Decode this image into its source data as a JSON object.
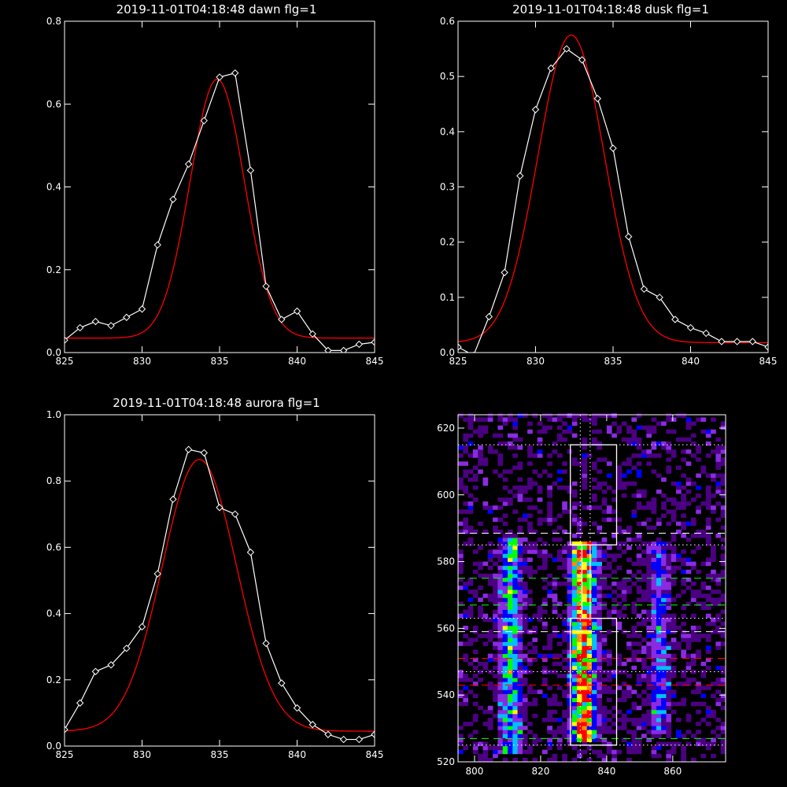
{
  "chart_data": [
    {
      "type": "line",
      "title": "2019-11-01T04:18:48 dawn flg=1",
      "xlim": [
        825,
        845
      ],
      "ylim": [
        0,
        0.8
      ],
      "xticks": [
        825,
        830,
        835,
        840,
        845
      ],
      "xtick_labels": [
        "825",
        "830",
        "835",
        "840",
        "845"
      ],
      "yticks": [
        0,
        0.2,
        0.4,
        0.6,
        0.8
      ],
      "ytick_labels": [
        "0.0",
        "0.2",
        "0.4",
        "0.6",
        "0.8"
      ],
      "series": [
        {
          "color": "#ffffff",
          "marker": "diamond",
          "x": [
            825,
            826,
            827,
            828,
            829,
            830,
            831,
            832,
            833,
            834,
            835,
            836,
            837,
            838,
            839,
            840,
            841,
            842,
            843,
            844,
            845
          ],
          "y": [
            0.03,
            0.06,
            0.075,
            0.065,
            0.085,
            0.105,
            0.26,
            0.37,
            0.455,
            0.56,
            0.665,
            0.675,
            0.44,
            0.16,
            0.08,
            0.1,
            0.045,
            0.005,
            0.005,
            0.02,
            0.025
          ]
        },
        {
          "color": "#ff0000",
          "fit": {
            "kind": "gaussian",
            "amp": 0.625,
            "center": 834.85,
            "sigma": 1.75,
            "base": 0.035
          }
        }
      ]
    },
    {
      "type": "line",
      "title": "2019-11-01T04:18:48 dusk flg=1",
      "xlim": [
        825,
        845
      ],
      "ylim": [
        0,
        0.6
      ],
      "xticks": [
        825,
        830,
        835,
        840,
        845
      ],
      "xtick_labels": [
        "825",
        "830",
        "835",
        "840",
        "845"
      ],
      "yticks": [
        0,
        0.1,
        0.2,
        0.3,
        0.4,
        0.5,
        0.6
      ],
      "ytick_labels": [
        "0.0",
        "0.1",
        "0.2",
        "0.3",
        "0.4",
        "0.5",
        "0.6"
      ],
      "series": [
        {
          "color": "#ffffff",
          "marker": "diamond",
          "x": [
            825,
            826,
            827,
            828,
            829,
            830,
            831,
            832,
            833,
            834,
            835,
            836,
            837,
            838,
            839,
            840,
            841,
            842,
            843,
            844,
            845
          ],
          "y": [
            0.01,
            -0.005,
            0.065,
            0.145,
            0.32,
            0.44,
            0.515,
            0.55,
            0.53,
            0.46,
            0.37,
            0.21,
            0.115,
            0.1,
            0.06,
            0.045,
            0.035,
            0.02,
            0.02,
            0.02,
            0.01
          ]
        },
        {
          "color": "#ff0000",
          "fit": {
            "kind": "gaussian",
            "amp": 0.557,
            "center": 832.3,
            "sigma": 2.15,
            "base": 0.018
          }
        }
      ]
    },
    {
      "type": "line",
      "title": "2019-11-01T04:18:48 aurora flg=1",
      "xlim": [
        825,
        845
      ],
      "ylim": [
        0,
        1.0
      ],
      "xticks": [
        825,
        830,
        835,
        840,
        845
      ],
      "xtick_labels": [
        "825",
        "830",
        "835",
        "840",
        "845"
      ],
      "yticks": [
        0,
        0.2,
        0.4,
        0.6,
        0.8,
        1.0
      ],
      "ytick_labels": [
        "0.0",
        "0.2",
        "0.4",
        "0.6",
        "0.8",
        "1.0"
      ],
      "series": [
        {
          "color": "#ffffff",
          "marker": "diamond",
          "x": [
            825,
            826,
            827,
            828,
            829,
            830,
            831,
            832,
            833,
            834,
            835,
            836,
            837,
            838,
            839,
            840,
            841,
            842,
            843,
            844,
            845
          ],
          "y": [
            0.05,
            0.13,
            0.225,
            0.245,
            0.295,
            0.36,
            0.52,
            0.745,
            0.895,
            0.885,
            0.72,
            0.7,
            0.585,
            0.31,
            0.19,
            0.115,
            0.065,
            0.035,
            0.02,
            0.02,
            0.035
          ]
        },
        {
          "color": "#ff0000",
          "fit": {
            "kind": "gaussian",
            "amp": 0.82,
            "center": 833.7,
            "sigma": 2.4,
            "base": 0.045
          }
        }
      ]
    },
    {
      "type": "heatmap",
      "xlim": [
        795,
        876
      ],
      "ylim": [
        520,
        624
      ],
      "xticks": [
        800,
        820,
        840,
        860
      ],
      "xtick_labels": [
        "800",
        "820",
        "840",
        "860"
      ],
      "yticks": [
        520,
        540,
        560,
        580,
        600,
        620
      ],
      "ytick_labels": [
        "520",
        "540",
        "560",
        "580",
        "600",
        "620"
      ],
      "colormap": [
        "#000000",
        "#4b0082",
        "#8a2be2",
        "#0000ff",
        "#00bfff",
        "#00ff00",
        "#ffff00",
        "#ff8c00",
        "#ff0000"
      ],
      "bands": [
        {
          "center": 811,
          "width": 2.2,
          "y0": 522,
          "y1": 587,
          "strength": 0.55
        },
        {
          "center": 833,
          "width": 2.5,
          "y0": 525,
          "y1": 585,
          "strength": 0.95
        },
        {
          "center": 856,
          "width": 2.0,
          "y0": 528,
          "y1": 585,
          "strength": 0.35
        }
      ],
      "boxes": [
        {
          "x0": 829,
          "x1": 843,
          "y0": 585,
          "y1": 615
        },
        {
          "x0": 829,
          "x1": 843,
          "y0": 525,
          "y1": 563
        },
        {
          "x0": 832.5,
          "x1": 835,
          "y0": 563,
          "y1": 585
        }
      ],
      "hlines": [
        {
          "y": 615,
          "color": "#ffffff",
          "style": "dotted"
        },
        {
          "y": 588.5,
          "color": "#ffffff",
          "style": "dashed"
        },
        {
          "y": 585,
          "color": "#ffffff",
          "style": "dotted"
        },
        {
          "y": 575,
          "color": "#00ff00",
          "style": "dashed"
        },
        {
          "y": 567,
          "color": "#00ff00",
          "style": "dashed"
        },
        {
          "y": 563,
          "color": "#ffffff",
          "style": "dotted"
        },
        {
          "y": 559,
          "color": "#ffffff",
          "style": "dashed"
        },
        {
          "y": 551,
          "color": "#ff0000",
          "style": "dashed"
        },
        {
          "y": 547,
          "color": "#ffffff",
          "style": "dotted"
        },
        {
          "y": 543,
          "color": "#ff0000",
          "style": "dashed"
        },
        {
          "y": 527,
          "color": "#00ff00",
          "style": "dashed"
        },
        {
          "y": 525,
          "color": "#ffffff",
          "style": "dotted"
        }
      ],
      "vlines": [
        {
          "x": 832,
          "color": "#ffffff",
          "style": "dotted"
        },
        {
          "x": 835,
          "color": "#ffffff",
          "style": "dotted"
        }
      ]
    }
  ]
}
